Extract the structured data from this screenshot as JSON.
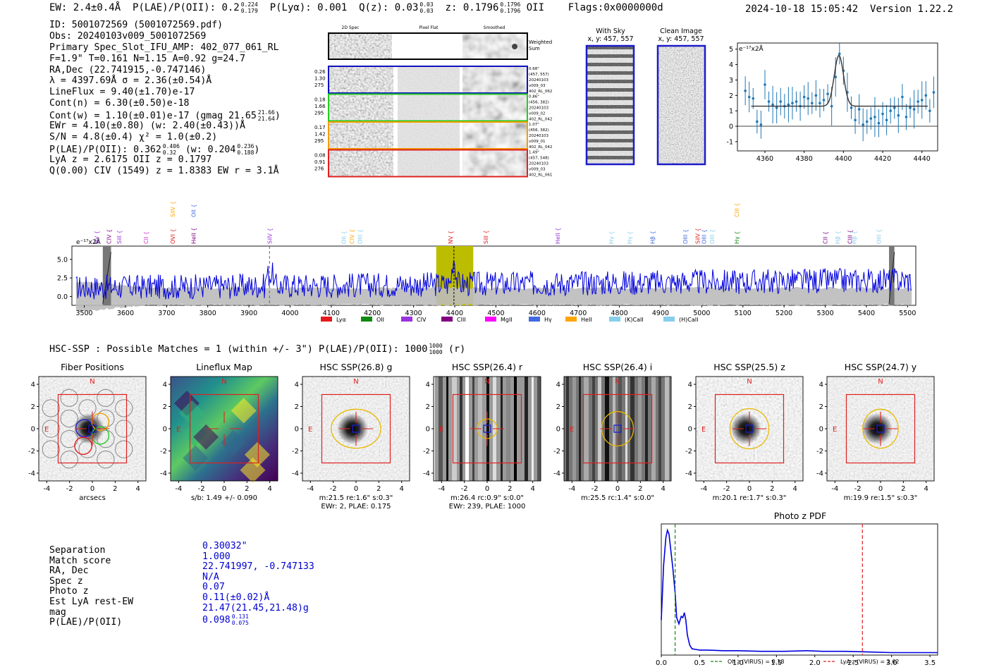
{
  "header": {
    "ew": "EW: 2.4±0.4Å",
    "plae_label": "P(LAE)/P(OII): 0.2",
    "plae_hi": "0.224",
    "plae_lo": "0.179",
    "plya": "P(Lyα): 0.001",
    "qz_label": "Q(z): 0.03",
    "qz_hi": "0.03",
    "qz_lo": "0.03",
    "z_label": "z: 0.1796",
    "z_hi": "0.1796",
    "z_lo": "0.1796",
    "z_line": "OII",
    "flags": "Flags:0x0000000d",
    "timestamp": "2024-10-18 15:05:42",
    "version": "Version 1.22.2"
  },
  "info": {
    "id": "ID: 5001072569 (5001072569.pdf)",
    "obs": "Obs: 20240103v009_5001072569",
    "primary": "Primary Spec_Slot_IFU_AMP: 402_077_061_RL",
    "fwhm": "F=1.9\"  T=0.161  N=1.15  A=0.92  g=24.7",
    "radec": "RA,Dec (22.741915,-0.747146)",
    "lambda": "λ = 4397.69Å  σ = 2.36(±0.54)Å",
    "lineflux": "LineFlux = 9.40(±1.70)e-17",
    "contn": "Cont(n) = 6.30(±0.50)e-18",
    "contw": "Cont(w) = 1.10(±0.01)e-17 (gmag 21.65",
    "contw_hi": "21.66",
    "contw_lo": "21.64",
    "ewr": "EWr = 4.10(±0.80) (w: 2.40(±0.43))Å",
    "sn": "S/N = 4.8(±0.4)  χ² = 1.0(±0.2)",
    "plae": "P(LAE)/P(OII): 0.362",
    "plae_hi": "0.406",
    "plae_lo": "0.32",
    "plae_w": "(w: 0.204",
    "plae_w_hi": "0.236",
    "plae_w_lo": "0.188",
    "lya": "LyA z = 2.6175  OII z = 0.1797",
    "civ": "Q(0.00) CIV (1549) z = 1.8383  EW r = 3.1Å"
  },
  "cutouts": {
    "col_2d": "2D Spec",
    "col_flat": "Pixel Flat",
    "col_smooth": "Smoothed",
    "weighted": [
      "Weighted",
      "Sum"
    ],
    "rows": [
      {
        "left": [
          "0.26",
          "1.30",
          "275"
        ],
        "right": [
          "0.68\"",
          "(457, 557)",
          "20240103",
          "v009_03",
          "402_RL_062"
        ],
        "color": "#1010c0"
      },
      {
        "left": [
          "0.18",
          "1.66",
          "295"
        ],
        "right": [
          "0.86\"",
          "(456, 382)",
          "20240103",
          "v009_02",
          "402_RL_042"
        ],
        "color": "#22cc22"
      },
      {
        "left": [
          "0.17",
          "1.42",
          "295"
        ],
        "right": [
          "1.07\"",
          "(456, 382)",
          "20240103",
          "v009_01",
          "402_RL_042"
        ],
        "color": "#f0a000"
      },
      {
        "left": [
          "0.08",
          "0.91",
          "276"
        ],
        "right": [
          "1.49\"",
          "(457, 548)",
          "20240103",
          "v009_03",
          "402_RL_061"
        ],
        "color": "#e02020"
      }
    ],
    "with_sky": [
      "With Sky",
      "x, y: 457, 557"
    ],
    "clean": [
      "Clean Image",
      "x, y: 457, 557"
    ]
  },
  "line_fit": {
    "unit": "e⁻¹⁷x2Å",
    "xlim": [
      4346,
      4448
    ],
    "ylim": [
      -1.6,
      5.4
    ],
    "xticks": [
      4360,
      4380,
      4400,
      4420,
      4440
    ],
    "yticks": [
      -1,
      0,
      1,
      2,
      3,
      4,
      5
    ]
  },
  "spectrum": {
    "unit": "e⁻¹⁷x2Å",
    "xlim": [
      3470,
      5520
    ],
    "ylim": [
      -1.2,
      6.8
    ],
    "xticks": [
      3500,
      3600,
      3700,
      3800,
      3900,
      4000,
      4100,
      4200,
      4300,
      4400,
      4500,
      4600,
      4700,
      4800,
      4900,
      5000,
      5100,
      5200,
      5300,
      5400,
      5500
    ],
    "yticks": [
      "0.0",
      "2.5",
      "5.0"
    ],
    "yvals": [
      0,
      2.5,
      5
    ],
    "legend": [
      {
        "name": "Lyα",
        "color": "#e41a1c"
      },
      {
        "name": "OII",
        "color": "#118811"
      },
      {
        "name": "CIV",
        "color": "#9933dd"
      },
      {
        "name": "CIII",
        "color": "#800080"
      },
      {
        "name": "MgII",
        "color": "#ff00ff"
      },
      {
        "name": "Hγ",
        "color": "#4169e1"
      },
      {
        "name": "HeII",
        "color": "#ffa500"
      },
      {
        "name": "(K)CaII",
        "color": "#87ceeb"
      },
      {
        "name": "(H)CaII",
        "color": "#87ceeb"
      }
    ],
    "lines": [
      {
        "name": "NV",
        "x": 3530,
        "color": "#9933dd",
        "row": 0
      },
      {
        "name": "CIV",
        "x": 3560,
        "color": "#800080",
        "row": 0
      },
      {
        "name": "SiII",
        "x": 3585,
        "color": "#9933dd",
        "row": 0
      },
      {
        "name": "CII",
        "x": 3650,
        "color": "#cc33cc",
        "row": 0
      },
      {
        "name": "OVI",
        "x": 3715,
        "color": "#e41a1c",
        "row": 0
      },
      {
        "name": "SiIV",
        "x": 3715,
        "color": "#ffa500",
        "row": 1
      },
      {
        "name": "HeII",
        "x": 3765,
        "color": "#800080",
        "row": 0
      },
      {
        "name": "OII",
        "x": 3765,
        "color": "#4169e1",
        "row": 1
      },
      {
        "name": "SiIV",
        "x": 3950,
        "color": "#9933dd",
        "row": 0
      },
      {
        "name": "OII",
        "x": 4130,
        "color": "#87ceeb",
        "row": 0
      },
      {
        "name": "CIV",
        "x": 4150,
        "color": "#ffa500",
        "row": 0
      },
      {
        "name": "OIII",
        "x": 4170,
        "color": "#87ceeb",
        "row": 0
      },
      {
        "name": "NV",
        "x": 4390,
        "color": "#e41a1c",
        "row": 0
      },
      {
        "name": "SiII",
        "x": 4475,
        "color": "#e41a1c",
        "row": 0
      },
      {
        "name": "HeII",
        "x": 4650,
        "color": "#9933dd",
        "row": 0
      },
      {
        "name": "Hγ",
        "x": 4780,
        "color": "#87ceeb",
        "row": 0
      },
      {
        "name": "Hγ",
        "x": 4825,
        "color": "#87ceeb",
        "row": 0
      },
      {
        "name": "Hβ",
        "x": 4880,
        "color": "#4169e1",
        "row": 0
      },
      {
        "name": "OIII",
        "x": 4960,
        "color": "#4169e1",
        "row": 0
      },
      {
        "name": "SiIV",
        "x": 4990,
        "color": "#e41a1c",
        "row": 0
      },
      {
        "name": "OIII",
        "x": 5005,
        "color": "#4169e1",
        "row": 0
      },
      {
        "name": "OIII",
        "x": 5025,
        "color": "#87ceeb",
        "row": 0
      },
      {
        "name": "Hγ",
        "x": 5085,
        "color": "#118811",
        "row": 0
      },
      {
        "name": "CIII",
        "x": 5085,
        "color": "#ffa500",
        "row": 1
      },
      {
        "name": "CII",
        "x": 5300,
        "color": "#800080",
        "row": 0
      },
      {
        "name": "Hβ",
        "x": 5330,
        "color": "#87ceeb",
        "row": 0
      },
      {
        "name": "CIII",
        "x": 5360,
        "color": "#800080",
        "row": 0
      },
      {
        "name": "Hβ",
        "x": 5370,
        "color": "#87ceeb",
        "row": 0
      },
      {
        "name": "OIII",
        "x": 5430,
        "color": "#87ceeb",
        "row": 0
      }
    ]
  },
  "hsc": {
    "summary": "HSC-SSP : Possible Matches = 1 (within +/- 3\")  P(LAE)/P(OII): 1000",
    "summary_hi": "1000",
    "summary_lo": "1000",
    "summary_tail": "(r)",
    "axis_ticks": [
      "-4",
      "-2",
      "0",
      "2",
      "4"
    ],
    "axis_vals": [
      -4,
      -2,
      0,
      2,
      4
    ],
    "north": "N",
    "east": "E",
    "panels": [
      {
        "title": "Fiber Positions",
        "cap1": "arcsecs",
        "cap2": ""
      },
      {
        "title": "Lineflux Map",
        "cap1": "s/b: 1.49 +/- 0.090",
        "cap2": ""
      },
      {
        "title": "HSC SSP(26.8) g",
        "cap1": "m:21.5  re:1.6\"  s:0.3\"",
        "cap2": "EWr: 2, PLAE: 0.175"
      },
      {
        "title": "HSC SSP(26.4) r",
        "cap1": "m:26.4 rc:0.9\"  s:0.0\"",
        "cap2": "EWr: 239, PLAE: 1000"
      },
      {
        "title": "HSC SSP(26.4) i",
        "cap1": "m:25.5 rc:1.4\"  s:0.0\"",
        "cap2": ""
      },
      {
        "title": "HSC SSP(25.5) z",
        "cap1": "m:20.1  re:1.7\"  s:0.3\"",
        "cap2": ""
      },
      {
        "title": "HSC SSP(24.7) y",
        "cap1": "m:19.9  re:1.5\"  s:0.3\"",
        "cap2": ""
      }
    ]
  },
  "match": {
    "labels": [
      "Separation",
      "Match score",
      "RA, Dec",
      "Spec z",
      "Photo z",
      "Est LyA rest-EW",
      "mag",
      "P(LAE)/P(OII)"
    ],
    "values": [
      "0.30032\"",
      "1.000",
      "22.741997, -0.747133",
      "N/A",
      "0.07",
      "0.11(±0.02)Å",
      "21.47(21.45,21.48)g",
      "0.098"
    ],
    "plae_hi": "0.131",
    "plae_lo": "0.075"
  },
  "chart_data": [
    {
      "type": "line",
      "title": "Photo z PDF",
      "xlabel": "",
      "ylabel": "",
      "xlim": [
        0,
        3.6
      ],
      "xticks": [
        "0.0",
        "0.5",
        "1.0",
        "1.5",
        "2.0",
        "2.5",
        "3.0",
        "3.5"
      ],
      "xtick_vals": [
        0,
        0.5,
        1.0,
        1.5,
        2.0,
        2.5,
        3.0,
        3.5
      ],
      "ylim": [
        0,
        1.05
      ],
      "x": [
        0.0,
        0.03,
        0.06,
        0.08,
        0.1,
        0.12,
        0.15,
        0.18,
        0.2,
        0.23,
        0.26,
        0.28,
        0.3,
        0.32,
        0.34,
        0.37,
        0.4,
        0.45,
        0.5,
        0.6,
        0.8,
        1.0,
        1.3,
        1.6,
        1.9,
        2.1,
        2.4,
        2.7,
        3.0,
        3.3,
        3.6
      ],
      "y": [
        0.28,
        0.72,
        0.94,
        1.0,
        0.97,
        0.86,
        0.7,
        0.5,
        0.3,
        0.25,
        0.31,
        0.3,
        0.34,
        0.28,
        0.16,
        0.08,
        0.05,
        0.045,
        0.04,
        0.04,
        0.035,
        0.035,
        0.03,
        0.03,
        0.035,
        0.03,
        0.03,
        0.025,
        0.02,
        0.02,
        0.02
      ],
      "vlines": [
        {
          "x": 0.18,
          "color": "#118811",
          "label": "OII z (VIRUS) = 0.18"
        },
        {
          "x": 2.62,
          "color": "#dd2222",
          "label": "LyA z (VIRUS) = 2.62"
        }
      ]
    },
    {
      "type": "scatter",
      "title": "",
      "xlabel": "",
      "ylabel": "e⁻¹⁷x2Å",
      "xlim": [
        4346,
        4448
      ],
      "ylim": [
        -1.6,
        5.4
      ],
      "x": [
        4350,
        4352,
        4354,
        4356,
        4358,
        4360,
        4362,
        4364,
        4366,
        4368,
        4370,
        4372,
        4374,
        4376,
        4378,
        4380,
        4382,
        4384,
        4386,
        4388,
        4390,
        4392,
        4394,
        4396,
        4398,
        4400,
        4402,
        4404,
        4406,
        4408,
        4410,
        4412,
        4414,
        4416,
        4418,
        4420,
        4422,
        4424,
        4426,
        4428,
        4430,
        4432,
        4434,
        4436,
        4438,
        4440,
        4442,
        4444,
        4446
      ],
      "y": [
        2.3,
        1.9,
        1.8,
        0.3,
        0.1,
        2.7,
        1.6,
        1.4,
        1.2,
        1.6,
        1.3,
        1.4,
        1.5,
        1.6,
        1.3,
        1.9,
        1.8,
        1.5,
        2.0,
        1.5,
        1.7,
        2.1,
        1.3,
        3.2,
        4.7,
        3.6,
        2.2,
        1.2,
        0.4,
        1.1,
        0.1,
        0.3,
        0.5,
        0.6,
        0.2,
        0.8,
        0.4,
        1.0,
        1.2,
        0.7,
        1.9,
        0.6,
        1.2,
        1.1,
        1.6,
        1.7,
        2.0,
        1.0,
        2.2
      ]
    }
  ]
}
